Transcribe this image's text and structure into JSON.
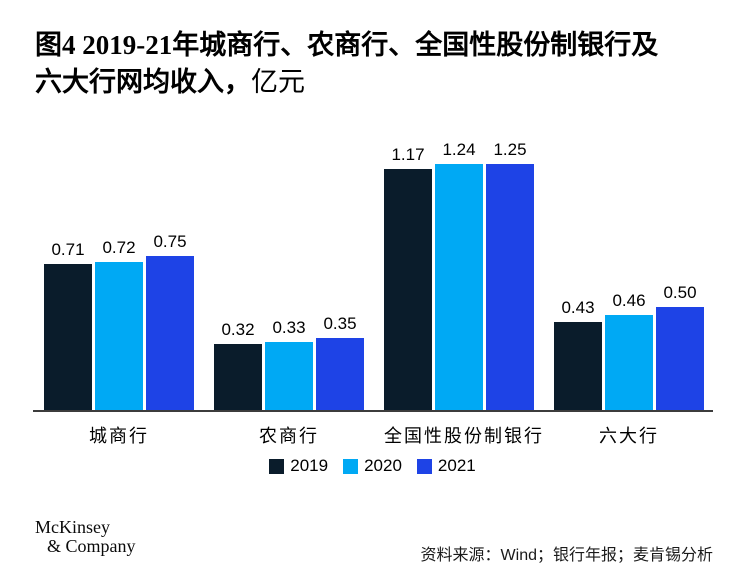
{
  "title": {
    "line1": "图4 2019-21年城商行、农商行、全国性股份制银行及",
    "line2_main": "六大行网均收入，",
    "line2_unit": "亿元"
  },
  "chart_data": {
    "type": "bar",
    "title": "图4 2019-21年城商行、农商行、全国性股份制银行及六大行网均收入，亿元",
    "unit": "亿元",
    "categories": [
      "城商行",
      "农商行",
      "全国性股份制银行",
      "六大行"
    ],
    "series": [
      {
        "name": "2019",
        "color": "#0A1C2B",
        "values": [
          0.71,
          0.32,
          1.17,
          0.43
        ]
      },
      {
        "name": "2020",
        "color": "#00A9F4",
        "values": [
          0.72,
          0.33,
          1.24,
          0.46
        ]
      },
      {
        "name": "2021",
        "color": "#1E43E6",
        "values": [
          0.75,
          0.35,
          1.25,
          0.5
        ]
      }
    ],
    "ylim": [
      0,
      1.32
    ],
    "grid": false,
    "value_labels": true,
    "legend_position": "bottom"
  },
  "footer": {
    "logo_line1": "McKinsey",
    "logo_line2": "& Company",
    "source": "资料来源：Wind；银行年报；麦肯锡分析"
  }
}
